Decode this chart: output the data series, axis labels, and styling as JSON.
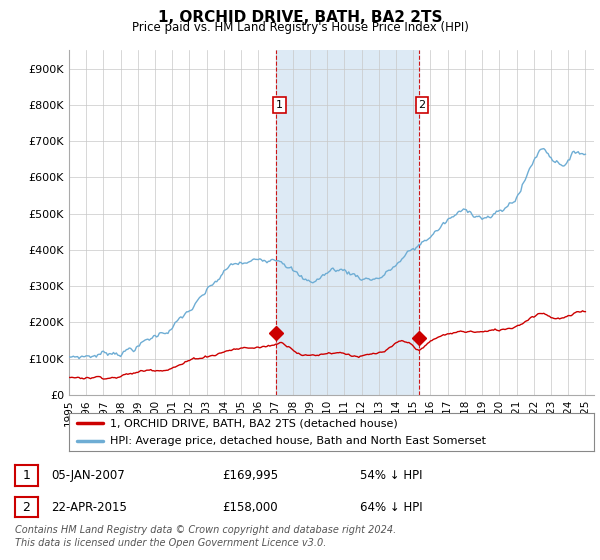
{
  "title": "1, ORCHID DRIVE, BATH, BA2 2TS",
  "subtitle": "Price paid vs. HM Land Registry's House Price Index (HPI)",
  "ylim": [
    0,
    950000
  ],
  "yticks": [
    0,
    100000,
    200000,
    300000,
    400000,
    500000,
    600000,
    700000,
    800000,
    900000
  ],
  "ytick_labels": [
    "£0",
    "£100K",
    "£200K",
    "£300K",
    "£400K",
    "£500K",
    "£600K",
    "£700K",
    "£800K",
    "£900K"
  ],
  "hpi_color": "#6eadd4",
  "price_color": "#cc0000",
  "vline_color": "#cc0000",
  "span_color": "#ddeaf5",
  "sale1_year": 2007.04,
  "sale2_year": 2015.31,
  "sale1_price": 169995,
  "sale2_price": 158000,
  "legend_label1": "1, ORCHID DRIVE, BATH, BA2 2TS (detached house)",
  "legend_label2": "HPI: Average price, detached house, Bath and North East Somerset",
  "footer": "Contains HM Land Registry data © Crown copyright and database right 2024.\nThis data is licensed under the Open Government Licence v3.0.",
  "background_color": "#ffffff",
  "grid_color": "#c8c8c8"
}
